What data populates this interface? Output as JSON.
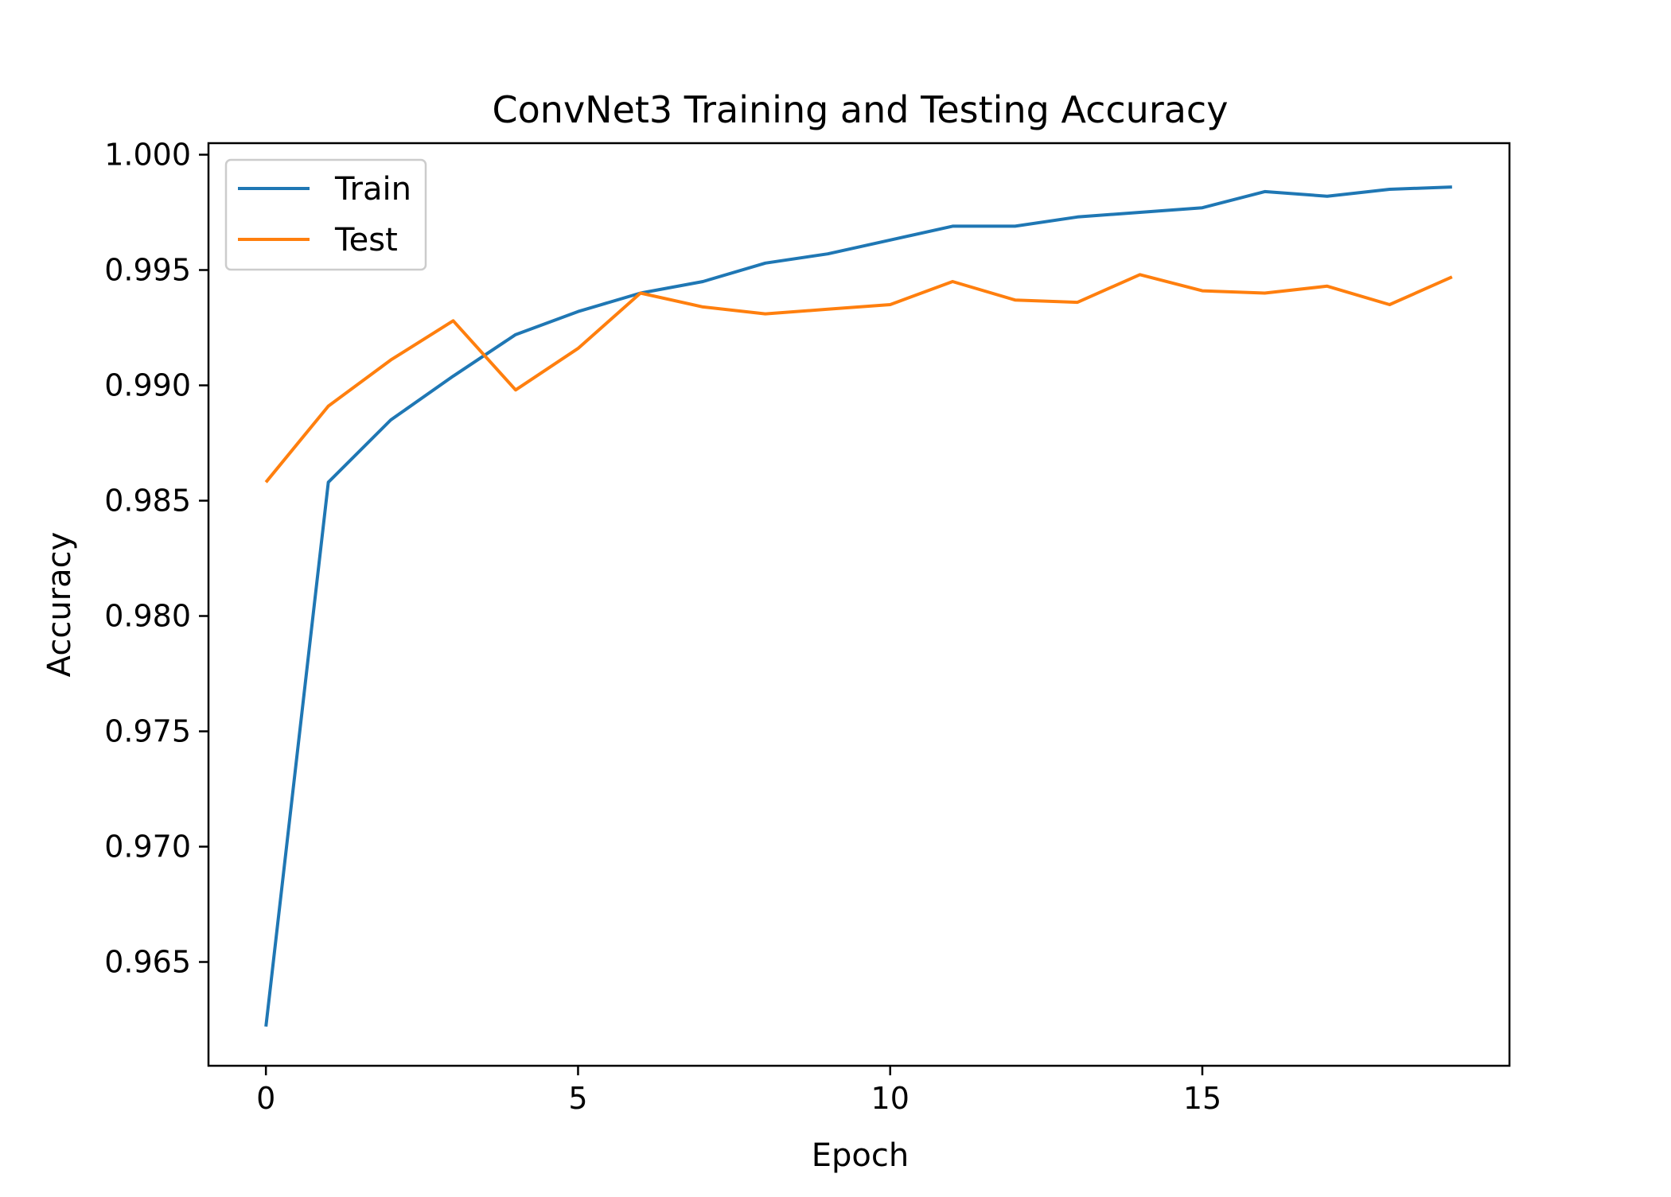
{
  "chart_data": {
    "type": "line",
    "title": "ConvNet3 Training and Testing Accuracy",
    "xlabel": "Epoch",
    "ylabel": "Accuracy",
    "x": [
      0,
      1,
      2,
      3,
      4,
      5,
      6,
      7,
      8,
      9,
      10,
      11,
      12,
      13,
      14,
      15,
      16,
      17,
      18,
      19
    ],
    "xlim": [
      -0.92,
      19.92
    ],
    "ylim": [
      0.9605,
      1.0005
    ],
    "xticks": [
      0,
      5,
      10,
      15
    ],
    "xtick_labels": [
      "0",
      "5",
      "10",
      "15"
    ],
    "yticks": [
      0.965,
      0.97,
      0.975,
      0.98,
      0.985,
      0.99,
      0.995,
      1.0
    ],
    "ytick_labels": [
      "0.965",
      "0.970",
      "0.975",
      "0.980",
      "0.985",
      "0.990",
      "0.995",
      "1.000"
    ],
    "grid": false,
    "legend_position": "top-left",
    "series": [
      {
        "name": "Train",
        "color": "#1f77b4",
        "values": [
          0.9622,
          0.9858,
          0.9885,
          0.9904,
          0.9922,
          0.9932,
          0.994,
          0.9945,
          0.9953,
          0.9957,
          0.9963,
          0.9969,
          0.9969,
          0.9973,
          0.9975,
          0.9977,
          0.9984,
          0.9982,
          0.9985,
          0.9986
        ]
      },
      {
        "name": "Test",
        "color": "#ff7f0e",
        "values": [
          0.9858,
          0.9891,
          0.9911,
          0.9928,
          0.9898,
          0.9916,
          0.994,
          0.9934,
          0.9931,
          0.9933,
          0.9935,
          0.9945,
          0.9937,
          0.9936,
          0.9948,
          0.9941,
          0.994,
          0.9943,
          0.9935,
          0.9947
        ]
      }
    ]
  }
}
